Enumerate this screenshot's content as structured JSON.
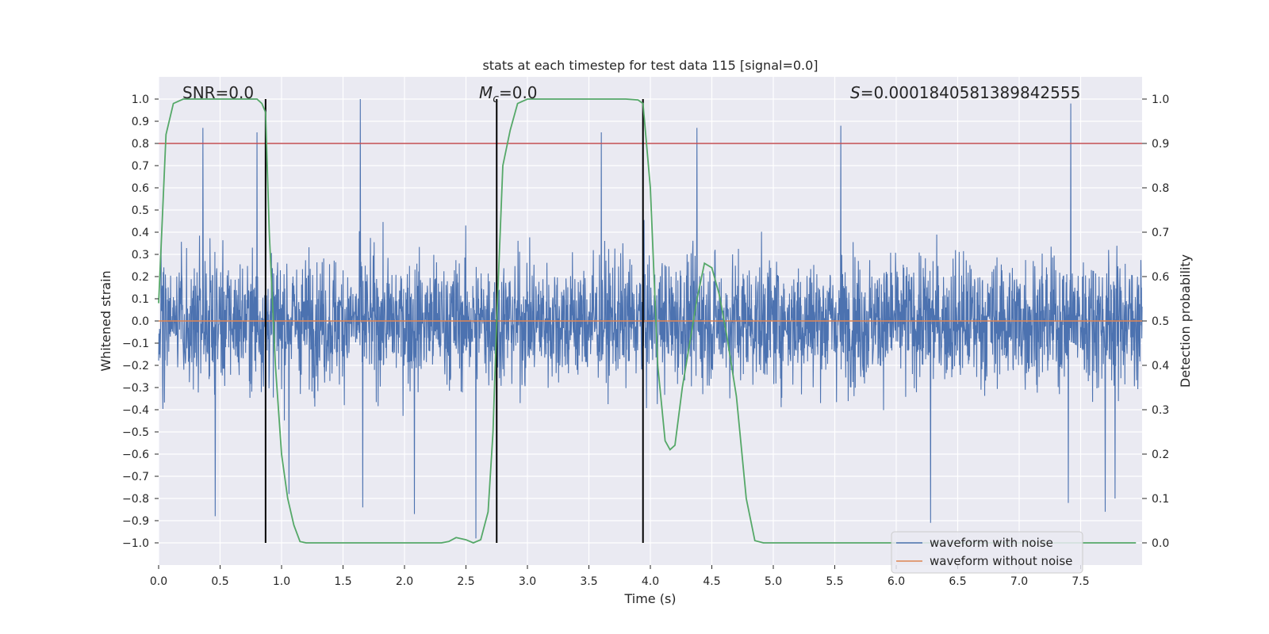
{
  "chart_data": {
    "type": "line",
    "title": "stats at each timestep for test data 115 [signal=0.0]",
    "xlabel": "Time (s)",
    "ylabel": "Whitened strain",
    "y2label": "Detection probability",
    "xlim": [
      0.0,
      8.0
    ],
    "ylim": [
      -1.1,
      1.1
    ],
    "y2lim": [
      -0.05,
      1.05
    ],
    "x_ticks": [
      0.0,
      0.5,
      1.0,
      1.5,
      2.0,
      2.5,
      3.0,
      3.5,
      4.0,
      4.5,
      5.0,
      5.5,
      6.0,
      6.5,
      7.0,
      7.5
    ],
    "x_tick_labels": [
      "0.0",
      "0.5",
      "1.0",
      "1.5",
      "2.0",
      "2.5",
      "3.0",
      "3.5",
      "4.0",
      "4.5",
      "5.0",
      "5.5",
      "6.0",
      "6.5",
      "7.0",
      "7.5"
    ],
    "y_ticks": [
      1.0,
      0.9,
      0.8,
      0.7,
      0.6,
      0.5,
      0.4,
      0.3,
      0.2,
      0.1,
      0.0,
      -0.1,
      -0.2,
      -0.3,
      -0.4,
      -0.5,
      -0.6,
      -0.7,
      -0.8,
      -0.9,
      -1.0
    ],
    "y_tick_labels": [
      "1.0",
      "0.9",
      "0.8",
      "0.7",
      "0.6",
      "0.5",
      "0.4",
      "0.3",
      "0.2",
      "0.1",
      "0.0",
      "−0.1",
      "−0.2",
      "−0.3",
      "−0.4",
      "−0.5",
      "−0.6",
      "−0.7",
      "−0.8",
      "−0.9",
      "−1.0"
    ],
    "y2_ticks": [
      1.0,
      0.9,
      0.8,
      0.7,
      0.6,
      0.5,
      0.4,
      0.3,
      0.2,
      0.1,
      0.0
    ],
    "y2_tick_labels": [
      "1.0",
      "0.9",
      "0.8",
      "0.7",
      "0.6",
      "0.5",
      "0.4",
      "0.3",
      "0.2",
      "0.1",
      "0.0"
    ],
    "annotations": {
      "snr": "SNR=0.0",
      "mc_symbol": "M",
      "mc_sub": "c",
      "mc_value": "=0.0",
      "s_symbol": "S",
      "s_value": "=0.0001840581389842555"
    },
    "threshold": {
      "axis": "y",
      "value": 0.8,
      "color": "#c44e52"
    },
    "vertical_lines": {
      "x": [
        0.87,
        2.75,
        3.94
      ],
      "y_range": [
        -1.0,
        1.0
      ],
      "color": "#000000"
    },
    "series": [
      {
        "name": "waveform with noise",
        "color": "#4c72b0",
        "kind": "noise",
        "envelope_y": [
          -0.88,
          1.0
        ],
        "sample_count": 3200,
        "peaks": [
          {
            "x": 0.36,
            "y": 0.87
          },
          {
            "x": 0.46,
            "y": -0.88
          },
          {
            "x": 0.8,
            "y": 0.85
          },
          {
            "x": 1.06,
            "y": -0.78
          },
          {
            "x": 1.64,
            "y": 1.0
          },
          {
            "x": 1.66,
            "y": -0.84
          },
          {
            "x": 2.08,
            "y": -0.87
          },
          {
            "x": 2.58,
            "y": -0.98
          },
          {
            "x": 3.6,
            "y": 0.85
          },
          {
            "x": 4.38,
            "y": 0.87
          },
          {
            "x": 5.55,
            "y": 0.88
          },
          {
            "x": 6.28,
            "y": -0.91
          },
          {
            "x": 7.42,
            "y": 0.98
          },
          {
            "x": 7.4,
            "y": -0.82
          },
          {
            "x": 7.7,
            "y": -0.86
          },
          {
            "x": 7.78,
            "y": -0.8
          }
        ]
      },
      {
        "name": "waveform without noise",
        "color": "#dd8452",
        "x": [
          0.0,
          8.0
        ],
        "y": [
          0.0,
          0.0
        ]
      },
      {
        "name": "detection probability",
        "color": "#55a868",
        "axis": "y2",
        "x": [
          0.0,
          0.06,
          0.12,
          0.2,
          0.4,
          0.6,
          0.8,
          0.84,
          0.87,
          0.9,
          0.95,
          1.0,
          1.05,
          1.1,
          1.15,
          1.2,
          1.5,
          2.0,
          2.3,
          2.36,
          2.42,
          2.5,
          2.56,
          2.62,
          2.68,
          2.72,
          2.75,
          2.8,
          2.86,
          2.92,
          3.0,
          3.5,
          3.8,
          3.9,
          3.94,
          4.0,
          4.06,
          4.12,
          4.16,
          4.2,
          4.26,
          4.32,
          4.38,
          4.44,
          4.5,
          4.56,
          4.62,
          4.7,
          4.78,
          4.85,
          4.92,
          5.0,
          5.5,
          6.0,
          7.0,
          7.95
        ],
        "y": [
          0.54,
          0.92,
          0.99,
          1.0,
          1.0,
          1.0,
          1.0,
          0.99,
          0.97,
          0.7,
          0.4,
          0.2,
          0.1,
          0.04,
          0.003,
          0.0,
          0.0,
          0.0,
          0.0,
          0.003,
          0.012,
          0.007,
          0.0,
          0.007,
          0.07,
          0.25,
          0.5,
          0.85,
          0.93,
          0.99,
          1.0,
          1.0,
          1.0,
          0.998,
          0.99,
          0.8,
          0.4,
          0.23,
          0.21,
          0.22,
          0.35,
          0.45,
          0.55,
          0.63,
          0.62,
          0.56,
          0.47,
          0.33,
          0.1,
          0.005,
          0.0,
          0.0,
          0.0,
          0.0,
          0.0,
          0.0
        ]
      }
    ],
    "legend": {
      "position": "lower-right",
      "entries": [
        {
          "label": "waveform with noise",
          "color": "#4c72b0"
        },
        {
          "label": "waveform without noise",
          "color": "#dd8452"
        }
      ]
    },
    "style": {
      "background": "#eaeaf2",
      "grid": true,
      "grid_color": "#ffffff"
    }
  }
}
